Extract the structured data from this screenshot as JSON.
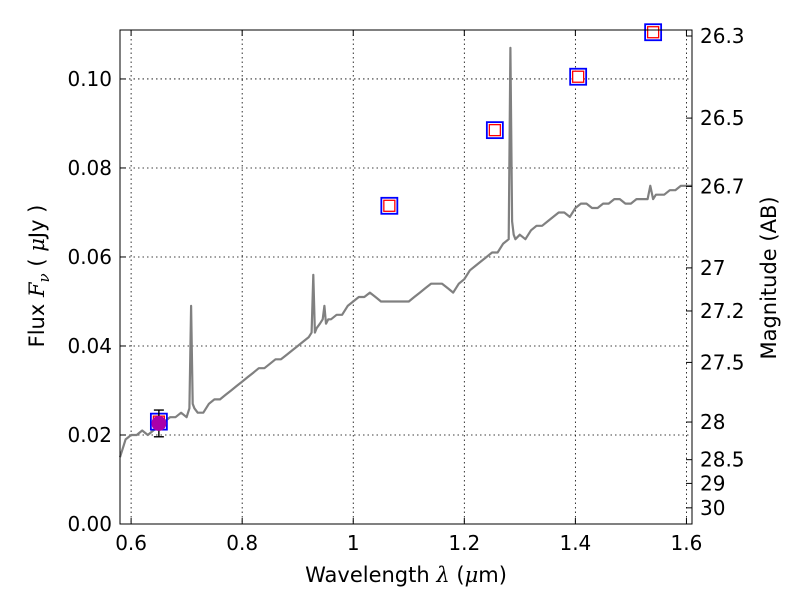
{
  "chart_data": {
    "type": "line",
    "xlabel": {
      "prefix": "Wavelength",
      "symbol": "λ",
      "unit_open": "(",
      "unit_mu": "μ",
      "unit_rest": "m)"
    },
    "ylabel": {
      "prefix": "Flux",
      "symbol": "F",
      "subscript": "ν",
      "unit_open": "(",
      "unit_mu": "μ",
      "unit_rest": "Jy )"
    },
    "y2label": "Magnitude (AB)",
    "xlim": [
      0.58,
      1.61
    ],
    "ylim": [
      0.0,
      0.111
    ],
    "grid": true,
    "x_ticks": [
      {
        "value": 0.6,
        "label": ""
      },
      {
        "value": 0.8,
        "label": "0.8"
      },
      {
        "value": 1.0,
        "label": "1"
      },
      {
        "value": 1.2,
        "label": "1.2"
      },
      {
        "value": 1.4,
        "label": "1.4"
      },
      {
        "value": 1.6,
        "label": "1.6"
      }
    ],
    "x_tick_label_0_6": "0.6",
    "y_ticks": [
      {
        "value": 0.0,
        "label": "0.00"
      },
      {
        "value": 0.02,
        "label": "0.02"
      },
      {
        "value": 0.04,
        "label": "0.04"
      },
      {
        "value": 0.06,
        "label": "0.06"
      },
      {
        "value": 0.08,
        "label": "0.08"
      },
      {
        "value": 0.1,
        "label": "0.10"
      }
    ],
    "y2_ticks": [
      {
        "value": 26.3,
        "label": "26.3"
      },
      {
        "value": 26.5,
        "label": "26.5"
      },
      {
        "value": 26.7,
        "label": "26.7"
      },
      {
        "value": 27.0,
        "label": "27"
      },
      {
        "value": 27.2,
        "label": "27.2"
      },
      {
        "value": 27.5,
        "label": "27.5"
      },
      {
        "value": 28.0,
        "label": "28"
      },
      {
        "value": 28.5,
        "label": "28.5"
      },
      {
        "value": 29.0,
        "label": "29"
      },
      {
        "value": 30.0,
        "label": "30"
      }
    ],
    "series": [
      {
        "style": "line",
        "color": "#808080",
        "x": [
          0.58,
          0.59,
          0.6,
          0.61,
          0.62,
          0.63,
          0.64,
          0.65,
          0.66,
          0.67,
          0.68,
          0.69,
          0.7,
          0.705,
          0.708,
          0.711,
          0.714,
          0.72,
          0.73,
          0.74,
          0.75,
          0.76,
          0.77,
          0.78,
          0.79,
          0.8,
          0.81,
          0.82,
          0.83,
          0.84,
          0.85,
          0.86,
          0.87,
          0.88,
          0.89,
          0.9,
          0.91,
          0.92,
          0.925,
          0.928,
          0.931,
          0.934,
          0.94,
          0.945,
          0.948,
          0.951,
          0.955,
          0.96,
          0.97,
          0.98,
          0.99,
          1.0,
          1.01,
          1.02,
          1.03,
          1.04,
          1.05,
          1.06,
          1.07,
          1.08,
          1.09,
          1.1,
          1.11,
          1.12,
          1.13,
          1.14,
          1.15,
          1.16,
          1.17,
          1.18,
          1.19,
          1.2,
          1.21,
          1.22,
          1.23,
          1.24,
          1.25,
          1.26,
          1.27,
          1.28,
          1.283,
          1.286,
          1.289,
          1.292,
          1.3,
          1.31,
          1.32,
          1.33,
          1.34,
          1.35,
          1.36,
          1.37,
          1.38,
          1.39,
          1.4,
          1.41,
          1.42,
          1.43,
          1.44,
          1.45,
          1.46,
          1.47,
          1.48,
          1.49,
          1.5,
          1.51,
          1.52,
          1.53,
          1.535,
          1.54,
          1.545,
          1.55,
          1.56,
          1.57,
          1.58,
          1.59,
          1.6,
          1.61
        ],
        "y": [
          0.015,
          0.019,
          0.02,
          0.02,
          0.021,
          0.02,
          0.021,
          0.022,
          0.023,
          0.024,
          0.024,
          0.025,
          0.024,
          0.026,
          0.049,
          0.027,
          0.026,
          0.025,
          0.025,
          0.027,
          0.028,
          0.028,
          0.029,
          0.03,
          0.031,
          0.032,
          0.033,
          0.034,
          0.035,
          0.035,
          0.036,
          0.037,
          0.037,
          0.038,
          0.039,
          0.04,
          0.041,
          0.042,
          0.043,
          0.056,
          0.043,
          0.044,
          0.045,
          0.046,
          0.049,
          0.045,
          0.046,
          0.046,
          0.047,
          0.047,
          0.049,
          0.05,
          0.051,
          0.051,
          0.052,
          0.051,
          0.05,
          0.05,
          0.05,
          0.05,
          0.05,
          0.05,
          0.051,
          0.052,
          0.053,
          0.054,
          0.054,
          0.054,
          0.053,
          0.052,
          0.054,
          0.055,
          0.057,
          0.058,
          0.059,
          0.06,
          0.061,
          0.061,
          0.063,
          0.064,
          0.107,
          0.068,
          0.065,
          0.064,
          0.065,
          0.064,
          0.066,
          0.067,
          0.067,
          0.068,
          0.069,
          0.07,
          0.07,
          0.069,
          0.071,
          0.072,
          0.072,
          0.071,
          0.071,
          0.072,
          0.072,
          0.073,
          0.073,
          0.072,
          0.072,
          0.073,
          0.073,
          0.073,
          0.076,
          0.073,
          0.074,
          0.074,
          0.074,
          0.075,
          0.075,
          0.076,
          0.076,
          0.076
        ]
      },
      {
        "style": "markers-square",
        "edge_color_outer": "#0000ff",
        "edge_color_inner": "#ff0000",
        "x": [
          0.65,
          1.065,
          1.255,
          1.405,
          1.54
        ],
        "y": [
          0.023,
          0.0715,
          0.0885,
          0.1005,
          0.1105
        ]
      },
      {
        "style": "marker-circle-errorbar",
        "color": "#aa00aa",
        "x": [
          0.65
        ],
        "y": [
          0.0226
        ],
        "yerr": [
          0.003
        ]
      }
    ]
  }
}
